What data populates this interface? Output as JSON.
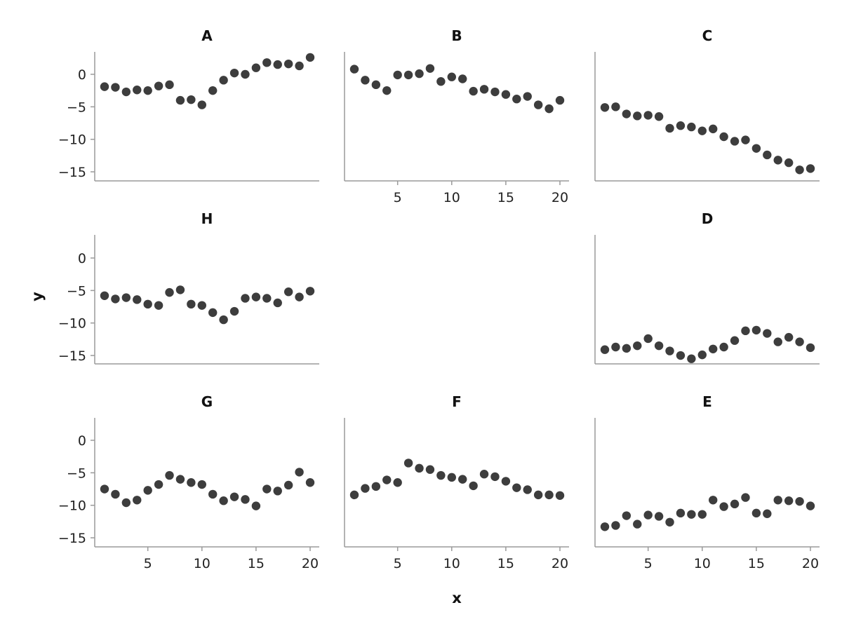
{
  "colors": {
    "point": "#3d3d3d",
    "axis": "#9a9a9a",
    "text": "#222222"
  },
  "chart_data": {
    "type": "scatter",
    "xlabel": "x",
    "ylabel": "y",
    "xlim": [
      0,
      21
    ],
    "ylim": [
      -16.5,
      3.5
    ],
    "x_ticks": [
      5,
      10,
      15,
      20
    ],
    "y_ticks": [
      0,
      -5,
      -10,
      -15
    ],
    "grid": false,
    "x": [
      1,
      2,
      3,
      4,
      5,
      6,
      7,
      8,
      9,
      10,
      11,
      12,
      13,
      14,
      15,
      16,
      17,
      18,
      19,
      20
    ],
    "panels": [
      {
        "name": "A",
        "row": 0,
        "col": 0,
        "show_y_ticks": true,
        "show_x_ticks": false,
        "values": [
          -1.9,
          -2.0,
          -2.7,
          -2.4,
          -2.5,
          -1.8,
          -1.6,
          -4.0,
          -3.9,
          -4.7,
          -2.5,
          -0.9,
          0.2,
          0.0,
          1.0,
          1.8,
          1.5,
          1.6,
          1.3,
          2.6
        ]
      },
      {
        "name": "B",
        "row": 0,
        "col": 1,
        "show_y_ticks": false,
        "show_x_ticks": true,
        "values": [
          0.8,
          -0.9,
          -1.6,
          -2.5,
          -0.1,
          -0.1,
          0.1,
          0.9,
          -1.1,
          -0.4,
          -0.7,
          -2.6,
          -2.3,
          -2.7,
          -3.1,
          -3.8,
          -3.4,
          -4.7,
          -5.3,
          -4.0
        ]
      },
      {
        "name": "C",
        "row": 0,
        "col": 2,
        "show_y_ticks": false,
        "show_x_ticks": false,
        "values": [
          -5.1,
          -5.0,
          -6.1,
          -6.4,
          -6.3,
          -6.5,
          -8.3,
          -7.9,
          -8.1,
          -8.7,
          -8.4,
          -9.6,
          -10.3,
          -10.1,
          -11.4,
          -12.4,
          -13.2,
          -13.6,
          -14.7,
          -14.5
        ]
      },
      {
        "name": "H",
        "row": 1,
        "col": 0,
        "show_y_ticks": true,
        "show_x_ticks": false,
        "values": [
          -5.8,
          -6.3,
          -6.1,
          -6.4,
          -7.1,
          -7.3,
          -5.3,
          -4.9,
          -7.1,
          -7.3,
          -8.4,
          -9.5,
          -8.2,
          -6.2,
          -6.0,
          -6.2,
          -6.9,
          -5.2,
          -6.0,
          -5.1
        ]
      },
      {
        "name": "D",
        "row": 1,
        "col": 2,
        "show_y_ticks": false,
        "show_x_ticks": false,
        "values": [
          -14.1,
          -13.7,
          -13.9,
          -13.5,
          -12.4,
          -13.5,
          -14.3,
          -15.0,
          -15.5,
          -14.9,
          -14.0,
          -13.7,
          -12.7,
          -11.2,
          -11.1,
          -11.6,
          -12.9,
          -12.2,
          -12.9,
          -13.8
        ]
      },
      {
        "name": "G",
        "row": 2,
        "col": 0,
        "show_y_ticks": true,
        "show_x_ticks": true,
        "values": [
          -7.5,
          -8.3,
          -9.6,
          -9.2,
          -7.7,
          -6.8,
          -5.4,
          -6.0,
          -6.5,
          -6.8,
          -8.3,
          -9.3,
          -8.7,
          -9.1,
          -10.1,
          -7.5,
          -7.8,
          -6.9,
          -4.9,
          -6.5
        ]
      },
      {
        "name": "F",
        "row": 2,
        "col": 1,
        "show_y_ticks": false,
        "show_x_ticks": true,
        "values": [
          -8.4,
          -7.4,
          -7.1,
          -6.1,
          -6.5,
          -3.5,
          -4.3,
          -4.5,
          -5.4,
          -5.7,
          -6.0,
          -7.0,
          -5.2,
          -5.6,
          -6.3,
          -7.3,
          -7.6,
          -8.4,
          -8.4,
          -8.5
        ]
      },
      {
        "name": "E",
        "row": 2,
        "col": 2,
        "show_y_ticks": false,
        "show_x_ticks": true,
        "values": [
          -13.3,
          -13.1,
          -11.6,
          -12.9,
          -11.5,
          -11.7,
          -12.6,
          -11.2,
          -11.4,
          -11.4,
          -9.2,
          -10.2,
          -9.8,
          -8.8,
          -11.2,
          -11.3,
          -9.2,
          -9.3,
          -9.4,
          -10.1
        ]
      }
    ]
  }
}
